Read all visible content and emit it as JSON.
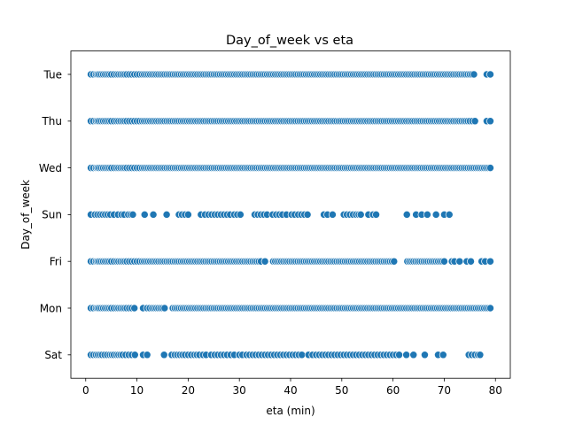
{
  "chart_data": {
    "type": "scatter",
    "title": "Day_of_week vs eta",
    "xlabel": "eta (min)",
    "ylabel": "Day_of_week",
    "xlim": [
      -2.9,
      82.9
    ],
    "x_ticks": [
      0,
      10,
      20,
      30,
      40,
      50,
      60,
      70,
      80
    ],
    "categories": [
      "Tue",
      "Thu",
      "Wed",
      "Sun",
      "Fri",
      "Mon",
      "Sat"
    ],
    "grid": false,
    "marker_color": "#1f77b4",
    "series": [
      {
        "category": "Tue",
        "x": [
          1,
          1.5,
          2,
          2.3,
          2.6,
          3,
          3.4,
          3.8,
          4.2,
          4.6,
          5,
          5.5,
          6,
          6.4,
          6.8,
          7.2,
          7.6,
          8,
          8.5,
          9,
          9.5,
          10,
          10.5,
          11,
          11.4,
          11.8,
          12.2,
          12.6,
          13,
          13.4,
          13.8,
          14.2,
          14.6,
          15,
          15.4,
          15.8,
          16.2,
          16.6,
          17,
          17.4,
          17.8,
          18.2,
          18.6,
          19,
          19.4,
          19.8,
          20.2,
          20.6,
          21,
          21.4,
          21.8,
          22.2,
          22.6,
          23,
          23.4,
          23.8,
          24.2,
          24.6,
          25,
          25.4,
          25.8,
          26.2,
          26.6,
          27,
          27.4,
          27.8,
          28.2,
          28.6,
          29,
          29.4,
          29.8,
          30.2,
          30.6,
          31,
          31.4,
          31.8,
          32.2,
          32.6,
          33,
          33.4,
          33.8,
          34.2,
          34.6,
          35,
          35.4,
          35.8,
          36.2,
          36.6,
          37,
          37.4,
          37.8,
          38.2,
          38.6,
          39,
          39.4,
          39.8,
          40.2,
          40.6,
          41,
          41.4,
          41.8,
          42.2,
          42.6,
          43,
          43.4,
          43.8,
          44.2,
          44.6,
          45,
          45.4,
          45.8,
          46.2,
          46.6,
          47,
          47.4,
          47.8,
          48.2,
          48.6,
          49,
          49.4,
          49.8,
          50.2,
          50.6,
          51,
          51.4,
          51.8,
          52.2,
          52.6,
          53,
          53.4,
          53.8,
          54.2,
          54.6,
          55,
          55.4,
          55.8,
          56.2,
          56.6,
          57,
          57.4,
          57.8,
          58.2,
          58.6,
          59,
          59.4,
          59.8,
          60.2,
          60.6,
          61,
          61.4,
          61.8,
          62.2,
          62.6,
          63,
          63.4,
          63.8,
          64.2,
          64.6,
          65,
          65.4,
          65.8,
          66.2,
          66.6,
          67,
          67.4,
          67.8,
          68.2,
          68.6,
          69,
          69.4,
          69.8,
          70.2,
          70.6,
          71,
          71.4,
          71.8,
          72.2,
          72.6,
          73,
          73.4,
          73.8,
          74.2,
          74.6,
          75,
          75.4,
          75.8,
          78.3,
          79
        ]
      },
      {
        "category": "Thu",
        "x": [
          1,
          1.5,
          2,
          2.3,
          2.6,
          3,
          3.4,
          3.8,
          4.2,
          4.6,
          5,
          5.5,
          6,
          6.4,
          6.8,
          7.2,
          7.6,
          8,
          8.5,
          9,
          9.5,
          10,
          10.5,
          11,
          11.4,
          11.8,
          12.2,
          12.6,
          13,
          13.4,
          13.8,
          14.2,
          14.6,
          15,
          15.4,
          15.8,
          16.2,
          16.6,
          17,
          17.4,
          17.8,
          18.2,
          18.6,
          19,
          19.4,
          19.8,
          20.2,
          20.6,
          21,
          21.4,
          21.8,
          22.2,
          22.6,
          23,
          23.4,
          23.8,
          24.2,
          24.6,
          25,
          25.4,
          25.8,
          26.2,
          26.6,
          27,
          27.4,
          27.8,
          28.2,
          28.6,
          29,
          29.4,
          29.8,
          30.2,
          30.6,
          31,
          31.4,
          31.8,
          32.2,
          32.6,
          33,
          33.4,
          33.8,
          34.2,
          34.6,
          35,
          35.4,
          35.8,
          36.2,
          36.6,
          37,
          37.4,
          37.8,
          38.2,
          38.6,
          39,
          39.4,
          39.8,
          40.2,
          40.6,
          41,
          41.4,
          41.8,
          42.2,
          42.6,
          43,
          43.4,
          43.8,
          44.2,
          44.6,
          45,
          45.4,
          45.8,
          46.2,
          46.6,
          47,
          47.4,
          47.8,
          48.2,
          48.6,
          49,
          49.4,
          49.8,
          50.2,
          50.6,
          51,
          51.4,
          51.8,
          52.2,
          52.6,
          53,
          53.4,
          53.8,
          54.2,
          54.6,
          55,
          55.4,
          55.8,
          56.2,
          56.6,
          57,
          57.4,
          57.8,
          58.2,
          58.6,
          59,
          59.4,
          59.8,
          60.2,
          60.6,
          61,
          61.4,
          61.8,
          62.2,
          62.6,
          63,
          63.4,
          63.8,
          64.2,
          64.6,
          65,
          65.4,
          65.8,
          66.2,
          66.6,
          67,
          67.4,
          67.8,
          68.2,
          68.6,
          69,
          69.4,
          69.8,
          70.2,
          70.6,
          71,
          71.4,
          71.8,
          72.2,
          72.6,
          73,
          73.4,
          73.8,
          74.2,
          74.6,
          75,
          75.5,
          76,
          78.3,
          79
        ]
      },
      {
        "category": "Wed",
        "x": [
          1,
          1.5,
          2,
          2.3,
          2.6,
          3,
          3.4,
          3.8,
          4.2,
          4.6,
          5,
          5.5,
          6,
          6.4,
          6.8,
          7.2,
          7.6,
          8,
          8.5,
          9,
          9.5,
          10,
          10.5,
          11,
          11.4,
          11.8,
          12.2,
          12.6,
          13,
          13.4,
          13.8,
          14.2,
          14.6,
          15,
          15.4,
          15.8,
          16.2,
          16.6,
          17,
          17.4,
          17.8,
          18.2,
          18.6,
          19,
          19.4,
          19.8,
          20.2,
          20.6,
          21,
          21.4,
          21.8,
          22.2,
          22.6,
          23,
          23.4,
          23.8,
          24.2,
          24.6,
          25,
          25.4,
          25.8,
          26.2,
          26.6,
          27,
          27.4,
          27.8,
          28.2,
          28.6,
          29,
          29.4,
          29.8,
          30.2,
          30.6,
          31,
          31.4,
          31.8,
          32.2,
          32.6,
          33,
          33.4,
          33.8,
          34.2,
          34.6,
          35,
          35.4,
          35.8,
          36.2,
          36.6,
          37,
          37.4,
          37.8,
          38.2,
          38.6,
          39,
          39.4,
          39.8,
          40.2,
          40.6,
          41,
          41.4,
          41.8,
          42.2,
          42.6,
          43,
          43.4,
          43.8,
          44.2,
          44.6,
          45,
          45.4,
          45.8,
          46.2,
          46.6,
          47,
          47.4,
          47.8,
          48.2,
          48.6,
          49,
          49.4,
          49.8,
          50.2,
          50.6,
          51,
          51.4,
          51.8,
          52.2,
          52.6,
          53,
          53.4,
          53.8,
          54.2,
          54.6,
          55,
          55.4,
          55.8,
          56.2,
          56.6,
          57,
          57.4,
          57.8,
          58.2,
          58.6,
          59,
          59.4,
          59.8,
          60.2,
          60.6,
          61,
          61.4,
          61.8,
          62.2,
          62.6,
          63,
          63.4,
          63.8,
          64.2,
          64.6,
          65,
          65.4,
          65.8,
          66.2,
          66.6,
          67,
          67.4,
          67.8,
          68.2,
          68.6,
          69,
          69.4,
          69.8,
          70.2,
          70.6,
          71,
          71.4,
          71.8,
          72.2,
          72.6,
          73,
          73.4,
          73.8,
          74.2,
          74.6,
          75,
          75.4,
          75.8,
          76.2,
          76.6,
          77,
          77.4,
          77.8,
          78.2,
          78.6,
          79
        ]
      },
      {
        "category": "Sun",
        "x": [
          1,
          1.8,
          2.3,
          2.8,
          3.3,
          3.8,
          4.3,
          4.8,
          5.5,
          6.3,
          7,
          7.5,
          8.3,
          8.8,
          9.2,
          11.5,
          13.2,
          15.8,
          18.2,
          18.8,
          19.4,
          20,
          22.5,
          23.3,
          24,
          24.6,
          25.2,
          25.8,
          26.4,
          27,
          27.6,
          28.2,
          29,
          29.6,
          30.2,
          33,
          33.6,
          34.2,
          34.8,
          35.4,
          36.5,
          37.2,
          37.8,
          38.4,
          39.2,
          40.2,
          40.8,
          41.5,
          42.1,
          42.7,
          43.3,
          46.5,
          47.2,
          48.2,
          50.4,
          51,
          51.6,
          52.2,
          52.8,
          53.3,
          53.7,
          55.2,
          56.1,
          56.7,
          62.7,
          64.5,
          65.6,
          66.7,
          68.4,
          70,
          71
        ]
      },
      {
        "category": "Fri",
        "x": [
          1,
          1.5,
          2,
          2.3,
          2.6,
          3,
          3.4,
          3.8,
          4.2,
          4.6,
          5,
          5.5,
          6,
          6.4,
          6.8,
          7.2,
          7.6,
          8,
          8.5,
          9,
          9.5,
          10,
          10.5,
          11,
          11.4,
          11.8,
          12.2,
          12.6,
          13,
          13.4,
          13.8,
          14.2,
          14.6,
          15,
          15.4,
          15.8,
          16.2,
          16.6,
          17,
          17.4,
          17.8,
          18.2,
          18.6,
          19,
          19.4,
          19.8,
          20.2,
          20.6,
          21,
          21.4,
          21.8,
          22.2,
          22.6,
          23,
          23.4,
          23.8,
          24.2,
          24.6,
          25,
          25.4,
          25.8,
          26.2,
          26.6,
          27,
          27.4,
          27.8,
          28.2,
          28.6,
          29,
          29.4,
          29.8,
          30.2,
          30.6,
          31,
          31.4,
          31.8,
          32.2,
          32.6,
          33,
          33.4,
          33.8,
          34.2,
          35,
          36.6,
          37,
          37.4,
          37.8,
          38.2,
          38.6,
          39,
          39.4,
          39.8,
          40.2,
          40.6,
          41,
          41.4,
          41.8,
          42.2,
          42.6,
          43,
          43.4,
          43.8,
          44.2,
          44.6,
          45,
          45.4,
          45.8,
          46.2,
          46.6,
          47,
          47.4,
          47.8,
          48.2,
          48.6,
          49,
          49.4,
          49.8,
          50.2,
          50.6,
          51,
          51.4,
          51.8,
          52.2,
          52.6,
          53,
          53.4,
          53.8,
          54.2,
          54.6,
          55,
          55.4,
          55.8,
          56.2,
          56.6,
          57,
          57.4,
          57.8,
          58.2,
          58.6,
          59,
          59.4,
          59.8,
          60.2,
          62.8,
          63.2,
          63.6,
          64,
          64.4,
          64.8,
          65.2,
          65.6,
          66,
          66.4,
          66.8,
          67.2,
          67.6,
          68,
          68.4,
          68.8,
          69.2,
          69.6,
          70,
          71.5,
          72,
          73,
          74.4,
          75.2,
          77.3,
          78,
          79
        ]
      },
      {
        "category": "Mon",
        "x": [
          1,
          1.5,
          2,
          2.3,
          2.6,
          3,
          3.4,
          3.8,
          4.2,
          4.6,
          5,
          5.5,
          6,
          6.4,
          6.8,
          7.2,
          7.6,
          8,
          8.5,
          9,
          9.5,
          11.2,
          12,
          12.5,
          13,
          13.4,
          13.8,
          14.2,
          14.6,
          15,
          15.4,
          17,
          17.4,
          17.8,
          18.2,
          18.6,
          19,
          19.4,
          19.8,
          20.2,
          20.6,
          21,
          21.4,
          21.8,
          22.2,
          22.6,
          23,
          23.4,
          23.8,
          24.2,
          24.6,
          25,
          25.4,
          25.8,
          26.2,
          26.6,
          27,
          27.4,
          27.8,
          28.2,
          28.6,
          29,
          29.4,
          29.8,
          30.2,
          30.6,
          31,
          31.4,
          31.8,
          32.2,
          32.6,
          33,
          33.4,
          33.8,
          34.2,
          34.6,
          35,
          35.4,
          35.8,
          36.2,
          36.6,
          37,
          37.4,
          37.8,
          38.2,
          38.6,
          39,
          39.4,
          39.8,
          40.2,
          40.6,
          41,
          41.4,
          41.8,
          42.2,
          42.6,
          43,
          43.4,
          43.8,
          44.2,
          44.6,
          45,
          45.4,
          45.8,
          46.2,
          46.6,
          47,
          47.4,
          47.8,
          48.2,
          48.6,
          49,
          49.4,
          49.8,
          50.2,
          50.6,
          51,
          51.4,
          51.8,
          52.2,
          52.6,
          53,
          53.4,
          53.8,
          54.2,
          54.6,
          55,
          55.4,
          55.8,
          56.2,
          56.6,
          57,
          57.4,
          57.8,
          58.2,
          58.6,
          59,
          59.4,
          59.8,
          60.2,
          60.6,
          61,
          61.4,
          61.8,
          62.2,
          62.6,
          63,
          63.4,
          63.8,
          64.2,
          64.6,
          65,
          65.4,
          65.8,
          66.2,
          66.6,
          67,
          67.4,
          67.8,
          68.2,
          68.6,
          69,
          69.4,
          69.8,
          70.2,
          70.6,
          71,
          71.4,
          71.8,
          72.2,
          72.6,
          73,
          73.4,
          73.8,
          74.2,
          74.6,
          75,
          75.4,
          75.8,
          76.2,
          76.6,
          77,
          77.4,
          77.8,
          78.2,
          78.6,
          79
        ]
      },
      {
        "category": "Sat",
        "x": [
          1,
          1.5,
          2,
          2.4,
          2.8,
          3.2,
          3.7,
          4.2,
          4.7,
          5.1,
          5.5,
          6,
          6.4,
          6.8,
          7.2,
          7.8,
          8.4,
          9,
          9.6,
          11.2,
          12,
          15.3,
          16.8,
          17.4,
          17.9,
          18.4,
          18.9,
          19.4,
          20,
          20.6,
          21.2,
          21.7,
          22.2,
          22.9,
          23.5,
          24.5,
          25.2,
          25.8,
          26.4,
          27,
          27.6,
          28.3,
          29,
          30,
          30.6,
          31.4,
          32,
          32.6,
          33.2,
          33.8,
          34.4,
          35,
          35.6,
          36.2,
          36.8,
          37.4,
          38,
          38.6,
          39.2,
          39.8,
          40.4,
          41,
          41.6,
          42.2,
          43.5,
          44.3,
          45,
          45.6,
          46.2,
          46.8,
          47.4,
          48,
          48.6,
          49.2,
          49.8,
          50.4,
          51,
          51.6,
          52.2,
          52.8,
          53.4,
          54,
          54.6,
          55.2,
          55.8,
          56.4,
          57,
          57.6,
          58.2,
          58.8,
          59.4,
          60,
          60.6,
          61.2,
          62.6,
          64,
          66.2,
          68.8,
          69.8,
          74.8,
          75.4,
          76,
          76.6,
          77
        ]
      }
    ]
  }
}
